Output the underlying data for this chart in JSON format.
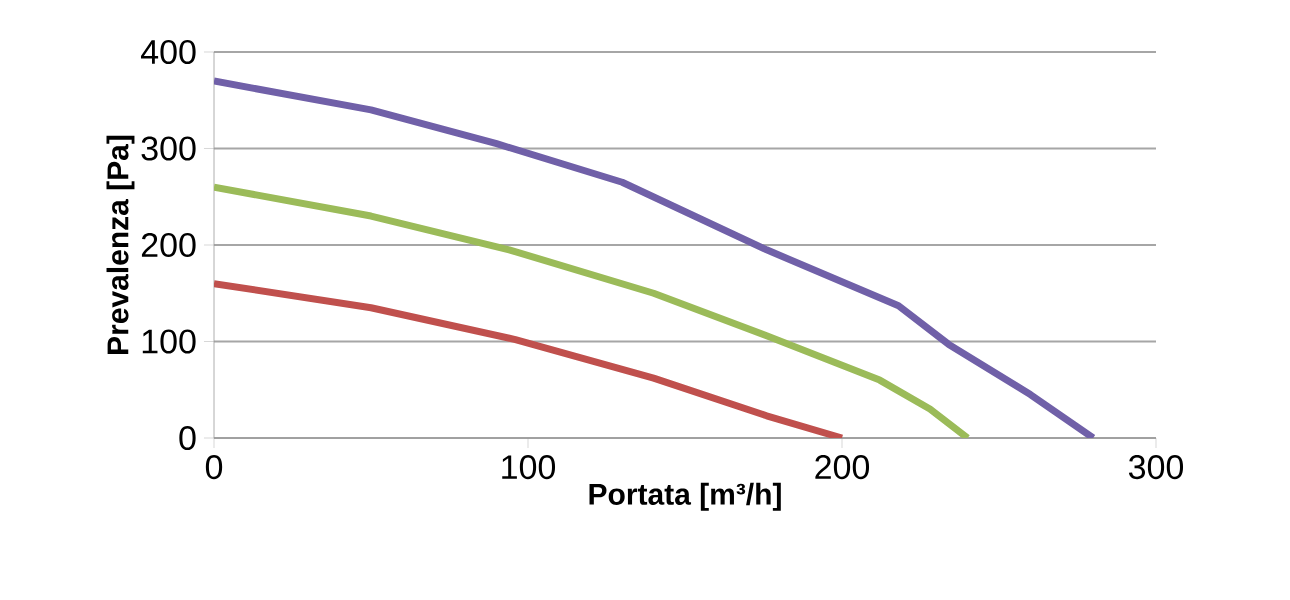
{
  "chart_data": {
    "type": "line",
    "xlabel": "Portata [m³/h]",
    "ylabel": "Prevalenza [Pa]",
    "xlim": [
      0,
      300
    ],
    "ylim": [
      0,
      400
    ],
    "xticks": [
      0,
      100,
      200,
      300
    ],
    "yticks": [
      0,
      100,
      200,
      300,
      400
    ],
    "grid": "y",
    "series": [
      {
        "color": "#7060a8",
        "x": [
          0,
          50,
          90,
          130,
          176,
          218,
          234,
          260,
          280
        ],
        "values": [
          370,
          340,
          305,
          265,
          195,
          137,
          97,
          45,
          0
        ]
      },
      {
        "color": "#9bbb59",
        "x": [
          0,
          50,
          94,
          140,
          176,
          212,
          228,
          240
        ],
        "values": [
          260,
          230,
          195,
          150,
          106,
          60,
          30,
          0
        ]
      },
      {
        "color": "#c0504d",
        "x": [
          0,
          50,
          96,
          140,
          176,
          200
        ],
        "values": [
          160,
          135,
          102,
          62,
          23,
          0
        ]
      }
    ]
  }
}
